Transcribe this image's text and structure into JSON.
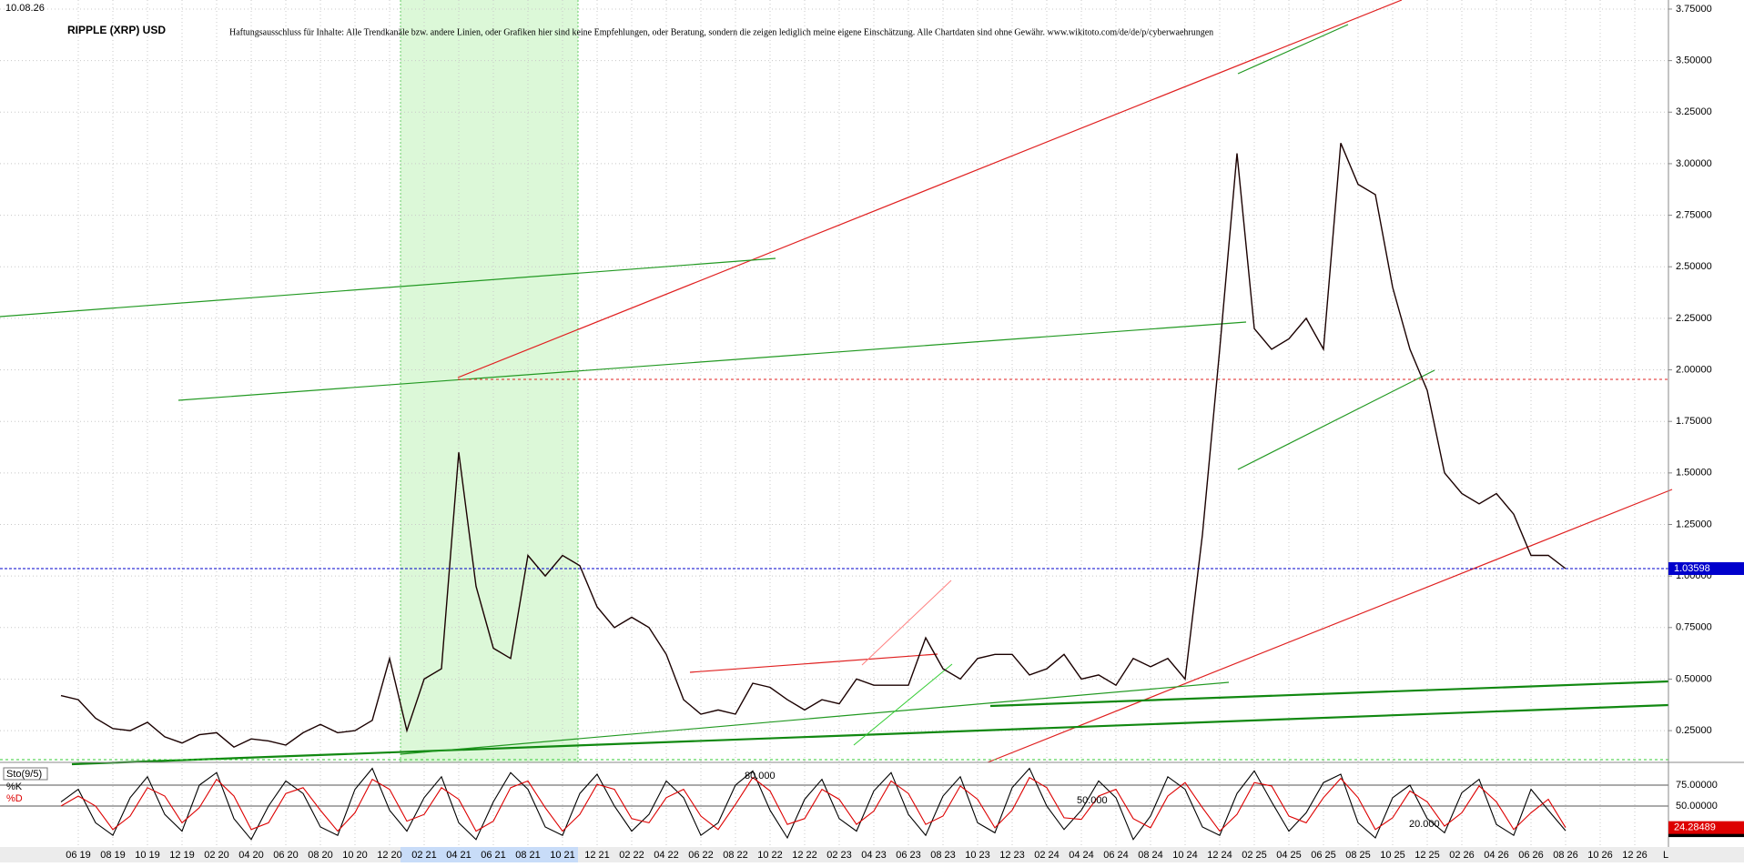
{
  "chart_data": [
    {
      "type": "line",
      "date": "10.08.26",
      "title": "RIPPLE (XRP) USD",
      "disclaimer": "Haftungsausschluss für Inhalte: Alle Trendkanäle bzw. andere Linien, oder Grafiken hier sind keine Empfehlungen, oder Beratung, sondern die zeigen lediglich meine eigene Einschätzung. Alle Chartdaten sind ohne Gewähr.  www.wikitoto.com/de/de/p/cyberwaehrungen",
      "axis_end_label": "L",
      "categories": [
        null,
        "06 19",
        null,
        "08 19",
        null,
        "10 19",
        null,
        "12 19",
        null,
        "02 20",
        null,
        "04 20",
        null,
        "06 20",
        null,
        "08 20",
        null,
        "10 20",
        null,
        "12 20",
        null,
        "02 21",
        null,
        "04 21",
        null,
        "06 21",
        null,
        "08 21",
        null,
        "10 21",
        null,
        "12 21",
        null,
        "02 22",
        null,
        "04 22",
        null,
        "06 22",
        null,
        "08 22",
        null,
        "10 22",
        null,
        "12 22",
        null,
        "02 23",
        null,
        "04 23",
        null,
        "06 23",
        null,
        "08 23",
        null,
        "10 23",
        null,
        "12 23",
        null,
        "02 24",
        null,
        "04 24",
        null,
        "06 24",
        null,
        "08 24",
        null,
        "10 24",
        null,
        "12 24",
        null,
        "02 25",
        null,
        "04 25",
        null,
        "06 25",
        null,
        "08 25",
        null,
        "10 25",
        null,
        "12 25",
        null,
        "02 26",
        null,
        "04 26",
        null,
        "06 26",
        null,
        "08 26",
        null,
        "10 26",
        null,
        "12 26"
      ],
      "series": [
        {
          "color": "#1a0000",
          "values": [
            0.42,
            0.4,
            0.31,
            0.26,
            0.25,
            0.29,
            0.22,
            0.19,
            0.23,
            0.24,
            0.17,
            0.21,
            0.2,
            0.18,
            0.24,
            0.28,
            0.24,
            0.25,
            0.3,
            0.6,
            0.25,
            0.5,
            0.55,
            1.6,
            0.95,
            0.65,
            0.6,
            1.1,
            1.0,
            1.1,
            1.05,
            0.85,
            0.75,
            0.8,
            0.75,
            0.62,
            0.4,
            0.33,
            0.35,
            0.33,
            0.48,
            0.46,
            0.4,
            0.35,
            0.4,
            0.38,
            0.5,
            0.47,
            0.47,
            0.47,
            0.7,
            0.55,
            0.5,
            0.6,
            0.62,
            0.62,
            0.52,
            0.55,
            0.62,
            0.5,
            0.52,
            0.47,
            0.6,
            0.56,
            0.6,
            0.5,
            1.2,
            2.1,
            3.05,
            2.2,
            2.1,
            2.15,
            2.25,
            2.1,
            3.1,
            2.9,
            2.85,
            2.4,
            2.1,
            1.9,
            1.5,
            1.4,
            1.35,
            1.4,
            1.3,
            1.1,
            1.1,
            1.03598,
            null,
            null,
            null,
            null
          ]
        }
      ],
      "last_color": "#0000cc",
      "ylim": [
        0.096,
        3.794
      ],
      "yticks": [
        {
          "value": 0.25,
          "label": "0.25000"
        },
        {
          "value": 0.5,
          "label": "0.50000"
        },
        {
          "value": 0.75,
          "label": "0.75000"
        },
        {
          "value": 1,
          "label": "1.00000"
        },
        {
          "value": 1.25,
          "label": "1.25000"
        },
        {
          "value": 1.5,
          "label": "1.50000"
        },
        {
          "value": 1.75,
          "label": "1.75000"
        },
        {
          "value": 2,
          "label": "2.00000"
        },
        {
          "value": 2.25,
          "label": "2.25000"
        },
        {
          "value": 2.5,
          "label": "2.50000"
        },
        {
          "value": 2.75,
          "label": "2.75000"
        },
        {
          "value": 3,
          "label": "3.00000"
        },
        {
          "value": 3.25,
          "label": "3.25000"
        },
        {
          "value": 3.5,
          "label": "3.50000"
        },
        {
          "value": 3.75,
          "label": "3.75000"
        }
      ],
      "grid": true
    },
    {
      "type": "line",
      "title": "Sto(9/5)",
      "annotations": [
        "80.000",
        "50.000",
        "20.000"
      ],
      "series": [
        {
          "name": "%K",
          "color": "#000000",
          "values": [
            55,
            70,
            30,
            15,
            60,
            85,
            40,
            20,
            75,
            90,
            35,
            10,
            50,
            80,
            65,
            25,
            15,
            70,
            95,
            45,
            20,
            60,
            85,
            30,
            10,
            55,
            90,
            70,
            25,
            15,
            65,
            88,
            50,
            20,
            40,
            80,
            60,
            15,
            30,
            75,
            92,
            45,
            12,
            58,
            82,
            35,
            20,
            68,
            90,
            40,
            15,
            62,
            85,
            30,
            18,
            72,
            95,
            50,
            22,
            45,
            80,
            60,
            10,
            38,
            85,
            70,
            25,
            15,
            65,
            92,
            55,
            20,
            42,
            78,
            88,
            30,
            12,
            60,
            75,
            35,
            18,
            66,
            82,
            28,
            15,
            70,
            45,
            20.55233,
            null,
            null,
            null,
            null
          ]
        },
        {
          "name": "%D",
          "color": "#dd0000",
          "values": [
            50,
            62,
            50,
            22,
            38,
            72,
            62,
            30,
            48,
            82,
            62,
            22,
            30,
            65,
            72,
            45,
            20,
            42,
            82,
            70,
            32,
            40,
            72,
            58,
            20,
            32,
            72,
            80,
            48,
            20,
            40,
            76,
            70,
            35,
            30,
            60,
            70,
            38,
            22,
            52,
            84,
            68,
            28,
            35,
            70,
            58,
            28,
            44,
            80,
            65,
            28,
            38,
            74,
            58,
            24,
            45,
            84,
            72,
            36,
            34,
            62,
            70,
            35,
            24,
            62,
            78,
            48,
            20,
            40,
            78,
            74,
            38,
            30,
            60,
            83,
            60,
            22,
            36,
            68,
            55,
            26,
            42,
            74,
            55,
            22,
            42,
            58,
            24.28489,
            null,
            null,
            null,
            null
          ]
        }
      ],
      "ylim": [
        0,
        100
      ],
      "yticks": [
        {
          "value": 75,
          "label": "75.00000"
        },
        {
          "value": 50,
          "label": "50.00000"
        }
      ]
    }
  ]
}
